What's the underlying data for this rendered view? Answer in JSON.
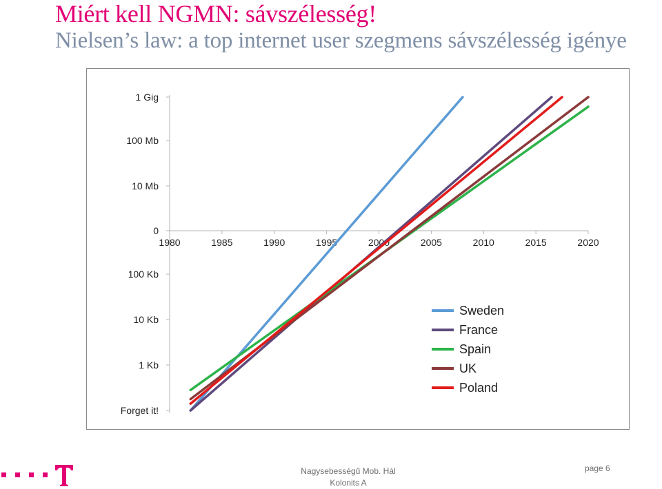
{
  "slide": {
    "title": "Miért kell NGMN: sávszélesség!",
    "subtitle": "Nielsen’s law: a top internet user szegmens sávszélesség igénye"
  },
  "footer": {
    "center_line1": "Nagysebességű Mob. Hál",
    "center_line2": "Kolonits A",
    "page_label": "page 6",
    "logo_icon": "telekom-t-logo-icon",
    "brand_color": "#e20074"
  },
  "chart_data": {
    "type": "line",
    "x_ticks": [
      1980,
      1985,
      1990,
      1995,
      2000,
      2005,
      2010,
      2015,
      2020
    ],
    "xlim": [
      1980,
      2020
    ],
    "y_tick_labels": [
      "Forget it!",
      "1 Kb",
      "10 Kb",
      "100 Kb",
      "0",
      "10 Mb",
      "100 Mb",
      "1 Gig"
    ],
    "y_tick_levels": [
      0,
      1,
      2,
      3,
      4,
      5,
      6,
      7
    ],
    "ylim": [
      0,
      7
    ],
    "legend_position": "bottom-right",
    "grid": false,
    "series": [
      {
        "name": "Sweden",
        "color": "#5b9bd5",
        "x": [
          1982,
          2008
        ],
        "y": [
          0,
          7
        ]
      },
      {
        "name": "France",
        "color": "#5e4a7e",
        "x": [
          1982,
          2016.5
        ],
        "y": [
          0,
          7
        ]
      },
      {
        "name": "Spain",
        "color": "#2db34a",
        "x": [
          1982,
          2020
        ],
        "y": [
          0.45,
          6.78
        ]
      },
      {
        "name": "UK",
        "color": "#8b3a3a",
        "x": [
          1982,
          2020
        ],
        "y": [
          0.25,
          7
        ]
      },
      {
        "name": "Poland",
        "color": "#e31b1b",
        "x": [
          1982,
          2017.5
        ],
        "y": [
          0.15,
          7
        ]
      }
    ]
  }
}
